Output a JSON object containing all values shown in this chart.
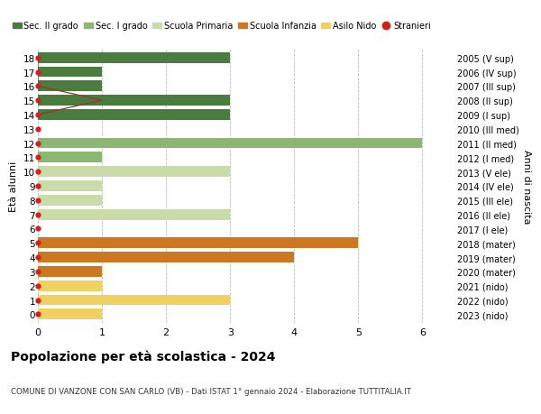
{
  "title": "Popolazione per età scolastica - 2024",
  "subtitle": "COMUNE DI VANZONE CON SAN CARLO (VB) - Dati ISTAT 1° gennaio 2024 - Elaborazione TUTTITALIA.IT",
  "ylabel_left": "Età alunni",
  "ylabel_right": "Anni di nascita",
  "ages": [
    0,
    1,
    2,
    3,
    4,
    5,
    6,
    7,
    8,
    9,
    10,
    11,
    12,
    13,
    14,
    15,
    16,
    17,
    18
  ],
  "right_labels": [
    "2023 (nido)",
    "2022 (nido)",
    "2021 (nido)",
    "2020 (mater)",
    "2019 (mater)",
    "2018 (mater)",
    "2017 (I ele)",
    "2016 (II ele)",
    "2015 (III ele)",
    "2014 (IV ele)",
    "2013 (V ele)",
    "2012 (I med)",
    "2011 (II med)",
    "2010 (III med)",
    "2009 (I sup)",
    "2008 (II sup)",
    "2007 (III sup)",
    "2006 (IV sup)",
    "2005 (V sup)"
  ],
  "bars": [
    {
      "age": 0,
      "value": 1,
      "color": "#f0d060"
    },
    {
      "age": 1,
      "value": 3,
      "color": "#f0d060"
    },
    {
      "age": 2,
      "value": 1,
      "color": "#f0d060"
    },
    {
      "age": 3,
      "value": 1,
      "color": "#cc7722"
    },
    {
      "age": 4,
      "value": 4,
      "color": "#cc7722"
    },
    {
      "age": 5,
      "value": 5,
      "color": "#cc7722"
    },
    {
      "age": 6,
      "value": 0,
      "color": "#c8dba8"
    },
    {
      "age": 7,
      "value": 3,
      "color": "#c8dba8"
    },
    {
      "age": 8,
      "value": 1,
      "color": "#c8dba8"
    },
    {
      "age": 9,
      "value": 1,
      "color": "#c8dba8"
    },
    {
      "age": 10,
      "value": 3,
      "color": "#c8dba8"
    },
    {
      "age": 11,
      "value": 1,
      "color": "#8ab870"
    },
    {
      "age": 12,
      "value": 6,
      "color": "#8ab870"
    },
    {
      "age": 13,
      "value": 0,
      "color": "#8ab870"
    },
    {
      "age": 14,
      "value": 3,
      "color": "#4a7c3f"
    },
    {
      "age": 15,
      "value": 3,
      "color": "#4a7c3f"
    },
    {
      "age": 16,
      "value": 1,
      "color": "#4a7c3f"
    },
    {
      "age": 17,
      "value": 1,
      "color": "#4a7c3f"
    },
    {
      "age": 18,
      "value": 3,
      "color": "#4a7c3f"
    }
  ],
  "stranieri": {
    "0": 0,
    "1": 0,
    "2": 0,
    "3": 0,
    "4": 0,
    "5": 0,
    "6": 0,
    "7": 0,
    "8": 0,
    "9": 0,
    "10": 0,
    "11": 0,
    "12": 0,
    "13": 0,
    "14": 0,
    "15": 1,
    "16": 0,
    "17": 0,
    "18": 0
  },
  "xlim": [
    0,
    6.5
  ],
  "xticks": [
    0,
    1,
    2,
    3,
    4,
    5,
    6
  ],
  "bg_color": "#ffffff",
  "grid_color": "#bbbbbb",
  "bar_height": 0.75,
  "legend_items": [
    {
      "label": "Sec. II grado",
      "color": "#4a7c3f"
    },
    {
      "label": "Sec. I grado",
      "color": "#8ab870"
    },
    {
      "label": "Scuola Primaria",
      "color": "#c8dba8"
    },
    {
      "label": "Scuola Infanzia",
      "color": "#cc7722"
    },
    {
      "label": "Asilo Nido",
      "color": "#f0d060"
    },
    {
      "label": "Stranieri",
      "color": "#cc2222"
    }
  ]
}
